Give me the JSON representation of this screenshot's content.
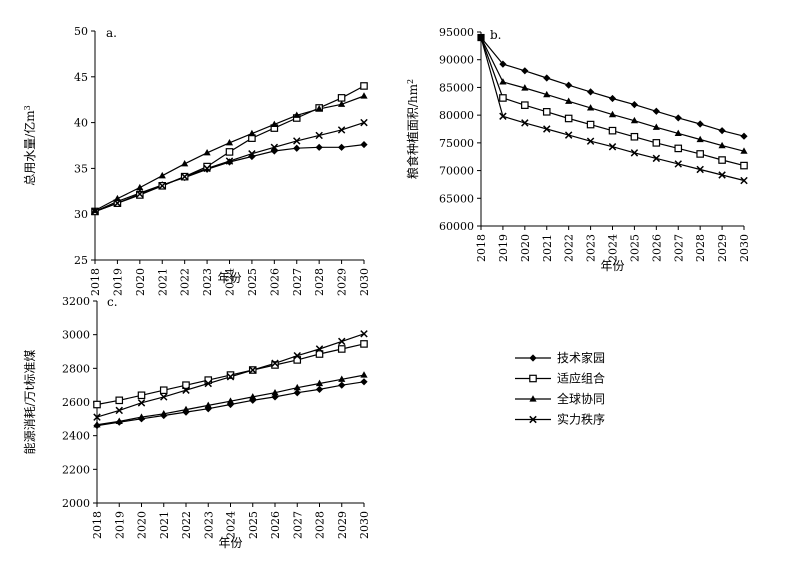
{
  "legend": {
    "items": [
      {
        "name": "技术家园",
        "marker": "diamond"
      },
      {
        "name": "适应组合",
        "marker": "square"
      },
      {
        "name": "全球协同",
        "marker": "triangle"
      },
      {
        "name": "实力秩序",
        "marker": "cross"
      }
    ]
  },
  "chart_data": [
    {
      "id": "a",
      "type": "line",
      "panel_label": "a.",
      "xlabel": "年份",
      "ylabel": "总用水量/亿m",
      "ylabel_sup": "3",
      "ylim": [
        25,
        50
      ],
      "yticks": [
        25,
        30,
        35,
        40,
        45,
        50
      ],
      "x": [
        2018,
        2019,
        2020,
        2021,
        2022,
        2023,
        2024,
        2025,
        2026,
        2027,
        2028,
        2029,
        2030
      ],
      "series": [
        {
          "name": "技术家园",
          "values": [
            30.3,
            31.4,
            32.3,
            33.2,
            34.0,
            34.9,
            35.7,
            36.3,
            36.9,
            37.2,
            37.3,
            37.3,
            37.6
          ]
        },
        {
          "name": "适应组合",
          "values": [
            30.3,
            31.2,
            32.1,
            33.1,
            34.1,
            35.2,
            36.8,
            38.3,
            39.4,
            40.5,
            41.6,
            42.7,
            44.0
          ]
        },
        {
          "name": "全球协同",
          "values": [
            30.4,
            31.7,
            32.9,
            34.2,
            35.5,
            36.7,
            37.8,
            38.8,
            39.8,
            40.8,
            41.5,
            42.0,
            42.9
          ]
        },
        {
          "name": "实力秩序",
          "values": [
            30.3,
            31.2,
            32.2,
            33.1,
            34.1,
            35.0,
            35.8,
            36.6,
            37.3,
            38.0,
            38.6,
            39.2,
            40.0
          ]
        }
      ]
    },
    {
      "id": "b",
      "type": "line",
      "panel_label": "b.",
      "xlabel": "年份",
      "ylabel": "粮食种植面积/hm",
      "ylabel_sup": "2",
      "ylim": [
        60000,
        95000
      ],
      "yticks": [
        60000,
        65000,
        70000,
        75000,
        80000,
        85000,
        90000,
        95000
      ],
      "x": [
        2018,
        2019,
        2020,
        2021,
        2022,
        2023,
        2024,
        2025,
        2026,
        2027,
        2028,
        2029,
        2030
      ],
      "series": [
        {
          "name": "技术家园",
          "values": [
            94000,
            89200,
            88000,
            86700,
            85400,
            84200,
            83000,
            81900,
            80700,
            79500,
            78400,
            77200,
            76200
          ]
        },
        {
          "name": "适应组合",
          "values": [
            94000,
            83100,
            81800,
            80600,
            79400,
            78300,
            77200,
            76100,
            75000,
            74000,
            73000,
            71900,
            70900
          ]
        },
        {
          "name": "全球协同",
          "values": [
            94000,
            86000,
            84900,
            83700,
            82500,
            81300,
            80100,
            79000,
            77800,
            76700,
            75600,
            74500,
            73500
          ]
        },
        {
          "name": "实力秩序",
          "values": [
            94000,
            79800,
            78600,
            77500,
            76400,
            75300,
            74300,
            73200,
            72200,
            71200,
            70200,
            69200,
            68200
          ]
        }
      ]
    },
    {
      "id": "c",
      "type": "line",
      "panel_label": "c.",
      "xlabel": "年份",
      "ylabel": "能源消耗/万t标准煤",
      "ylabel_sup": "",
      "ylim": [
        2000,
        3200
      ],
      "yticks": [
        2000,
        2200,
        2400,
        2600,
        2800,
        3000,
        3200
      ],
      "x": [
        2018,
        2019,
        2020,
        2021,
        2022,
        2023,
        2024,
        2025,
        2026,
        2027,
        2028,
        2029,
        2030
      ],
      "series": [
        {
          "name": "技术家园",
          "values": [
            2460,
            2480,
            2500,
            2520,
            2540,
            2560,
            2585,
            2610,
            2630,
            2655,
            2675,
            2700,
            2720
          ]
        },
        {
          "name": "适应组合",
          "values": [
            2585,
            2610,
            2640,
            2670,
            2700,
            2730,
            2760,
            2790,
            2820,
            2850,
            2885,
            2915,
            2945
          ]
        },
        {
          "name": "全球协同",
          "values": [
            2465,
            2485,
            2510,
            2530,
            2555,
            2580,
            2605,
            2630,
            2655,
            2685,
            2710,
            2735,
            2760
          ]
        },
        {
          "name": "实力秩序",
          "values": [
            2510,
            2550,
            2595,
            2630,
            2670,
            2710,
            2750,
            2790,
            2830,
            2875,
            2915,
            2960,
            3005
          ]
        }
      ]
    }
  ]
}
